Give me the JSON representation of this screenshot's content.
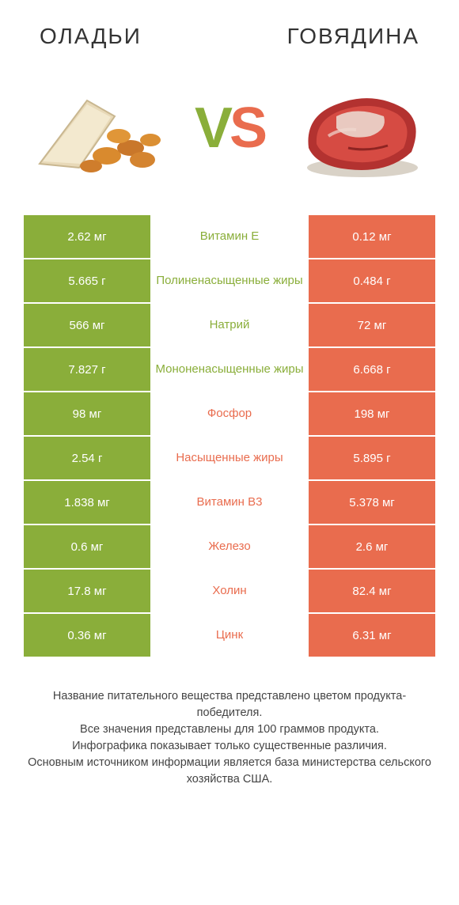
{
  "colors": {
    "left": "#8aae3a",
    "right": "#e96c4e",
    "bg": "#ffffff",
    "text": "#333333"
  },
  "left_title": "ОЛАДЬИ",
  "right_title": "ГОВЯДИНА",
  "vs_left": "V",
  "vs_right": "S",
  "rows": [
    {
      "left": "2.62 мг",
      "mid": "Витамин E",
      "right": "0.12 мг",
      "winner": "left"
    },
    {
      "left": "5.665 г",
      "mid": "Полиненасыщенные жиры",
      "right": "0.484 г",
      "winner": "left"
    },
    {
      "left": "566 мг",
      "mid": "Натрий",
      "right": "72 мг",
      "winner": "left"
    },
    {
      "left": "7.827 г",
      "mid": "Мононенасыщенные жиры",
      "right": "6.668 г",
      "winner": "left"
    },
    {
      "left": "98 мг",
      "mid": "Фосфор",
      "right": "198 мг",
      "winner": "right"
    },
    {
      "left": "2.54 г",
      "mid": "Насыщенные жиры",
      "right": "5.895 г",
      "winner": "right"
    },
    {
      "left": "1.838 мг",
      "mid": "Витамин B3",
      "right": "5.378 мг",
      "winner": "right"
    },
    {
      "left": "0.6 мг",
      "mid": "Железо",
      "right": "2.6 мг",
      "winner": "right"
    },
    {
      "left": "17.8 мг",
      "mid": "Холин",
      "right": "82.4 мг",
      "winner": "right"
    },
    {
      "left": "0.36 мг",
      "mid": "Цинк",
      "right": "6.31 мг",
      "winner": "right"
    }
  ],
  "footer_lines": [
    "Название питательного вещества представлено цветом продукта-победителя.",
    "Все значения представлены для 100 граммов продукта.",
    "Инфографика показывает только существенные различия.",
    "Основным источником информации является база министерства сельского хозяйства США."
  ]
}
